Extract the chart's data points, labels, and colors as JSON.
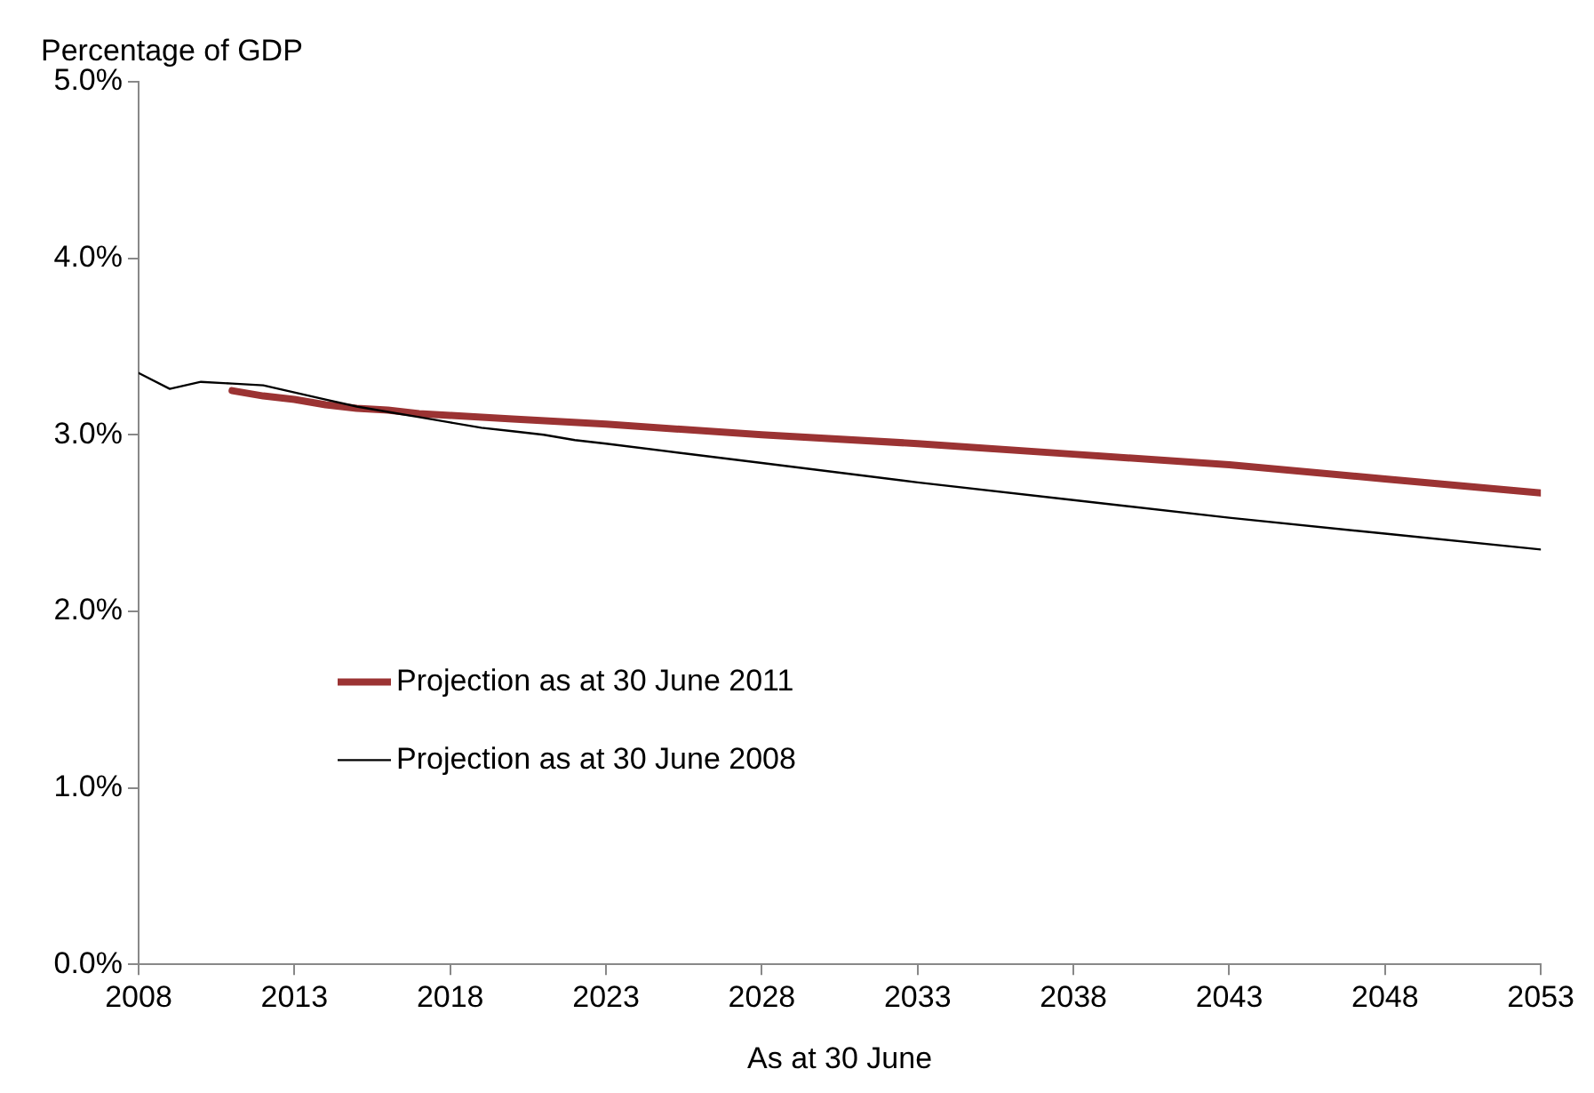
{
  "chart_data": {
    "type": "line",
    "ylabel": "Percentage of GDP",
    "xlabel": "As at 30 June",
    "xlim": [
      2008,
      2053
    ],
    "xticks": [
      2008,
      2013,
      2018,
      2023,
      2028,
      2033,
      2038,
      2043,
      2048,
      2053
    ],
    "ylim": [
      0,
      5
    ],
    "yticks": [
      {
        "value": 0,
        "label": "0.0%"
      },
      {
        "value": 1,
        "label": "1.0%"
      },
      {
        "value": 2,
        "label": "2.0%"
      },
      {
        "value": 3,
        "label": "3.0%"
      },
      {
        "value": 4,
        "label": "4.0%"
      },
      {
        "value": 5,
        "label": "5.0%"
      }
    ],
    "grid": false,
    "legend": "left",
    "marker": "none",
    "line_style": "solid",
    "series": [
      {
        "name": "Projection as at 30 June 2011",
        "color": "#9b3333",
        "x": [
          2011,
          2012,
          2013,
          2014,
          2015,
          2016,
          2017,
          2018,
          2020,
          2023,
          2028,
          2033,
          2038,
          2043,
          2048,
          2053
        ],
        "values": [
          3.25,
          3.22,
          3.2,
          3.17,
          3.15,
          3.14,
          3.12,
          3.11,
          3.09,
          3.06,
          3.0,
          2.95,
          2.89,
          2.83,
          2.75,
          2.67
        ]
      },
      {
        "name": "Projection as at 30 June 2008",
        "color": "#000000",
        "x": [
          2008,
          2009,
          2010,
          2011,
          2012,
          2013,
          2014,
          2015,
          2016,
          2017,
          2018,
          2019,
          2020,
          2021,
          2022,
          2023,
          2028,
          2033,
          2038,
          2043,
          2048,
          2053
        ],
        "values": [
          3.35,
          3.26,
          3.3,
          3.29,
          3.28,
          3.24,
          3.2,
          3.16,
          3.13,
          3.1,
          3.07,
          3.04,
          3.02,
          3.0,
          2.97,
          2.95,
          2.84,
          2.73,
          2.63,
          2.53,
          2.44,
          2.35
        ]
      }
    ]
  }
}
